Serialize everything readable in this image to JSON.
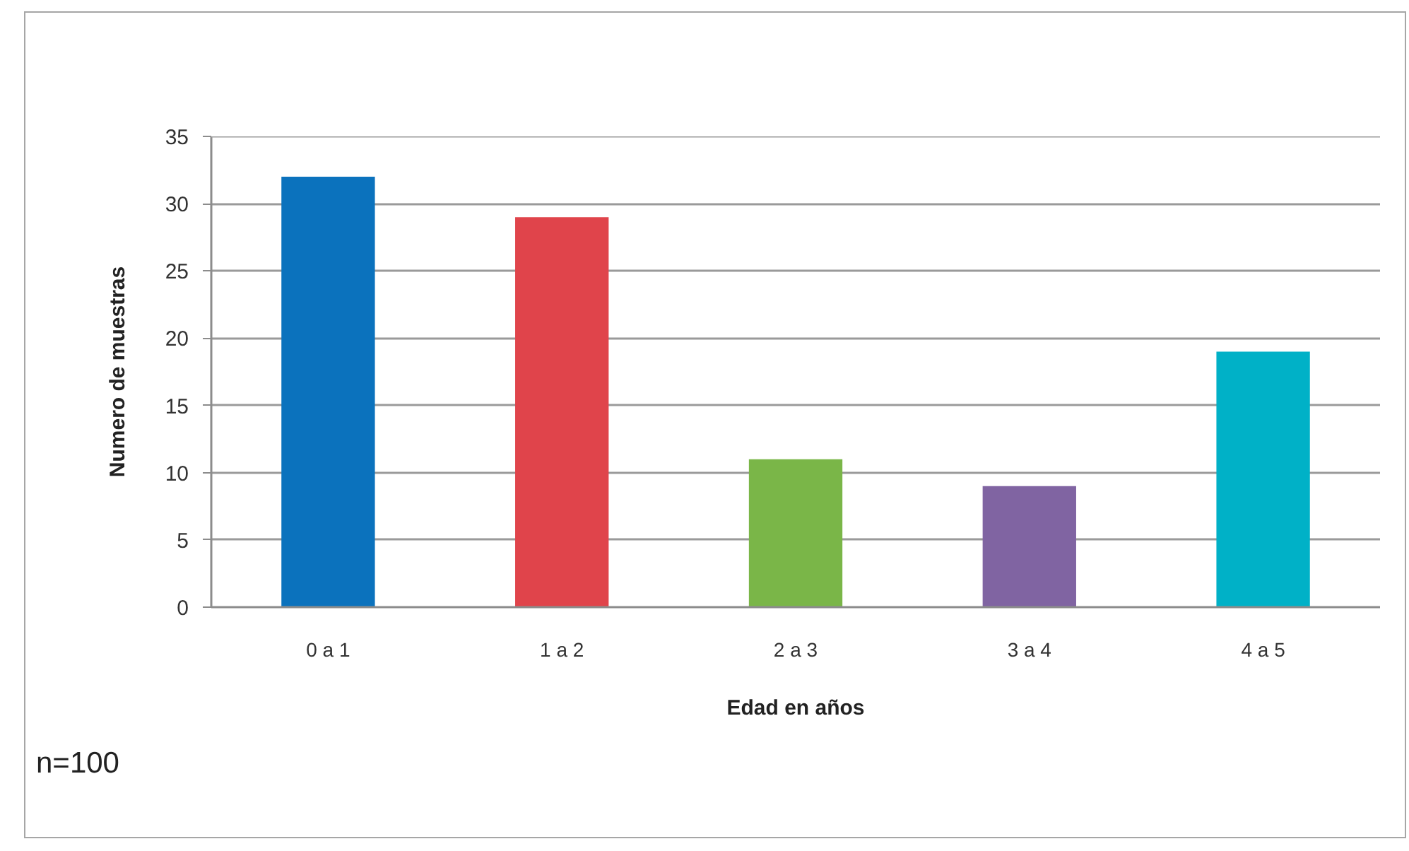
{
  "chart_data": {
    "type": "bar",
    "xlabel": "Edad en años",
    "ylabel": "Numero de muestras",
    "categories": [
      "0 a 1",
      "1 a 2",
      "2 a 3",
      "3 a 4",
      "4 a 5"
    ],
    "values": [
      32,
      29,
      11,
      9,
      19
    ],
    "colors": [
      "#0b72bd",
      "#e0444b",
      "#7ab648",
      "#8064a2",
      "#00b1c7"
    ],
    "ylim": [
      0,
      35
    ],
    "yticks": [
      0,
      5,
      10,
      15,
      20,
      25,
      30,
      35
    ],
    "grid": "y",
    "annotations": [
      "n=100"
    ]
  }
}
